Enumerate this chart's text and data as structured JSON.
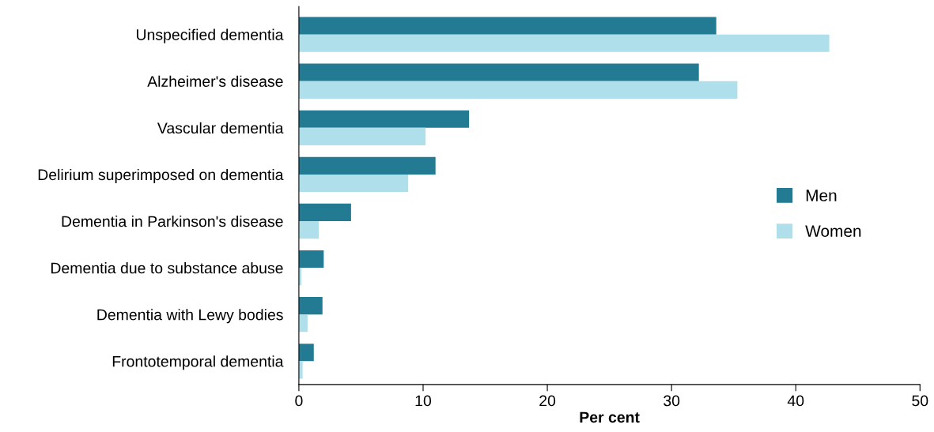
{
  "chart_data": {
    "type": "bar",
    "orientation": "horizontal",
    "xlabel": "Per cent",
    "categories": [
      "Unspecified dementia",
      "Alzheimer's disease",
      "Vascular dementia",
      "Delirium superimposed on dementia",
      "Dementia in Parkinson's disease",
      "Dementia due to substance abuse",
      "Dementia with Lewy bodies",
      "Frontotemporal dementia"
    ],
    "series": [
      {
        "name": "Men",
        "color": "#237b93",
        "values": [
          33.6,
          32.2,
          13.7,
          11.0,
          4.2,
          2.0,
          1.9,
          1.2
        ]
      },
      {
        "name": "Women",
        "color": "#aedfea",
        "values": [
          42.7,
          35.3,
          10.2,
          8.8,
          1.6,
          0.2,
          0.7,
          0.3
        ]
      }
    ],
    "xlim": [
      0,
      50
    ],
    "xticks": [
      0,
      10,
      20,
      30,
      40,
      50
    ],
    "grid": false,
    "legend": "center right"
  }
}
